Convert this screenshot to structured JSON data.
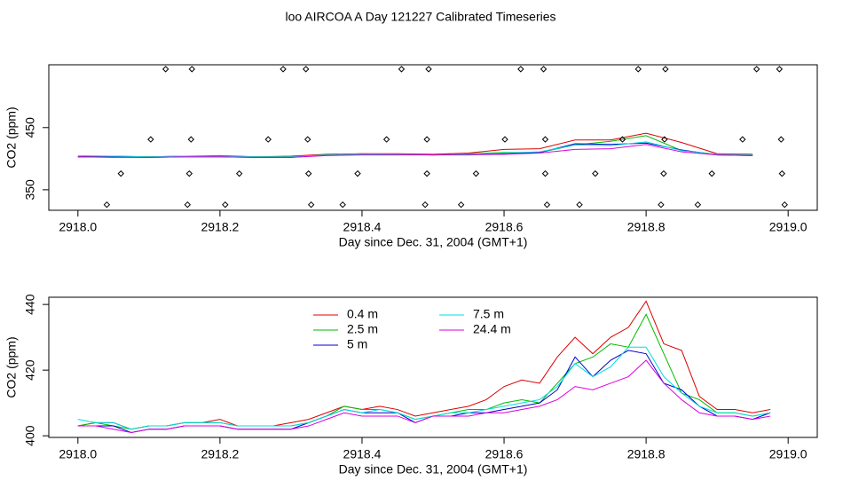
{
  "title": "loo AIRCOA A  Day 121227  Calibrated Timeseries",
  "chart_data": [
    {
      "type": "line",
      "xlabel": "Day since Dec. 31, 2004 (GMT+1)",
      "ylabel": "CO2 (ppm)",
      "xlim": [
        2917.959,
        2919.041
      ],
      "ylim": [
        317,
        551
      ],
      "xticks": [
        {
          "value": 2918,
          "label": "2918.0"
        },
        2918.2,
        2918.4,
        2918.6,
        2918.8,
        {
          "value": 2919,
          "label": "2919.0"
        }
      ],
      "yticks": [
        350,
        450
      ],
      "x": [
        2918.0,
        2918.05,
        2918.1,
        2918.15,
        2918.2,
        2918.25,
        2918.3,
        2918.35,
        2918.4,
        2918.45,
        2918.5,
        2918.55,
        2918.6,
        2918.65,
        2918.7,
        2918.75,
        2918.8,
        2918.85,
        2918.9,
        2918.95
      ],
      "series": [
        {
          "color": "#dd0000",
          "style": "lines",
          "values": [
            403,
            404,
            403,
            404,
            405,
            403,
            404,
            407,
            408,
            408,
            407,
            409,
            415,
            416,
            430,
            430,
            441,
            426,
            408,
            407
          ]
        },
        {
          "color": "#00bb00",
          "style": "lines",
          "values": [
            403,
            403,
            403,
            404,
            404,
            403,
            403,
            406,
            408,
            407,
            406,
            408,
            410,
            410,
            422,
            428,
            437,
            413,
            407,
            406
          ]
        },
        {
          "color": "#0000cc",
          "style": "lines",
          "values": [
            403,
            403,
            402,
            403,
            403,
            402,
            402,
            406,
            407,
            407,
            406,
            407,
            408,
            410,
            424,
            423,
            425,
            414,
            406,
            405
          ]
        },
        {
          "color": "#00dddd",
          "style": "lines",
          "values": [
            405,
            404,
            403,
            404,
            404,
            403,
            403,
            406,
            407,
            407,
            406,
            407,
            409,
            411,
            422,
            421,
            427,
            413,
            407,
            406
          ]
        },
        {
          "color": "#dd00dd",
          "style": "lines",
          "values": [
            403,
            402,
            402,
            403,
            403,
            402,
            402,
            405,
            406,
            406,
            406,
            406,
            407,
            409,
            415,
            416,
            423,
            411,
            406,
            405
          ]
        },
        {
          "color": "#000000",
          "style": "points",
          "x": [
            2918.1235,
            2918.1605,
            2918.2889,
            2918.321,
            2918.4556,
            2918.4938,
            2918.6235,
            2918.6556,
            2918.7889,
            2918.8272,
            2918.9556,
            2918.9877
          ],
          "values": [
            544,
            544,
            544,
            544,
            544,
            544,
            544,
            544,
            544,
            544,
            544,
            544
          ]
        },
        {
          "color": "#000000",
          "style": "points",
          "x": [
            2918.1025,
            2918.1593,
            2918.2679,
            2918.3235,
            2918.4346,
            2918.4914,
            2918.6012,
            2918.658,
            2918.7667,
            2918.8259,
            2918.9358,
            2918.9901
          ],
          "values": [
            431,
            431,
            431,
            431,
            431,
            431,
            431,
            431,
            431,
            431,
            431,
            431
          ]
        },
        {
          "color": "#000000",
          "style": "points",
          "x": [
            2918.0605,
            2918.1568,
            2918.2272,
            2918.3247,
            2918.3938,
            2918.4914,
            2918.5605,
            2918.658,
            2918.7284,
            2918.8247,
            2918.8926,
            2918.9914
          ],
          "values": [
            376,
            376,
            376,
            376,
            376,
            376,
            376,
            376,
            376,
            376,
            376,
            376
          ]
        },
        {
          "color": "#000000",
          "style": "points",
          "x": [
            2918.0407,
            2918.1543,
            2918.2074,
            2918.3284,
            2918.3728,
            2918.4889,
            2918.5395,
            2918.6605,
            2918.7062,
            2918.821,
            2918.8728,
            2918.9951
          ],
          "values": [
            326,
            326,
            326,
            326,
            326,
            326,
            326,
            326,
            326,
            326,
            326,
            326
          ]
        }
      ]
    },
    {
      "type": "line",
      "xlabel": "Day since Dec. 31, 2004 (GMT+1)",
      "ylabel": "CO2 (ppm)",
      "xlim": [
        2917.959,
        2919.041
      ],
      "ylim": [
        399.5,
        442.2
      ],
      "xticks": [
        {
          "value": 2918,
          "label": "2918.0"
        },
        2918.2,
        2918.4,
        2918.6,
        2918.8,
        {
          "value": 2919,
          "label": "2919.0"
        }
      ],
      "yticks": [
        400,
        420,
        440
      ],
      "legend": "top",
      "x": [
        2918.0,
        2918.025,
        2918.05,
        2918.075,
        2918.1,
        2918.125,
        2918.15,
        2918.175,
        2918.2,
        2918.225,
        2918.25,
        2918.275,
        2918.3,
        2918.325,
        2918.35,
        2918.375,
        2918.4,
        2918.425,
        2918.45,
        2918.475,
        2918.5,
        2918.525,
        2918.55,
        2918.575,
        2918.6,
        2918.625,
        2918.65,
        2918.675,
        2918.7,
        2918.725,
        2918.75,
        2918.775,
        2918.8,
        2918.825,
        2918.85,
        2918.875,
        2918.9,
        2918.925,
        2918.95,
        2918.975
      ],
      "series": [
        {
          "name": "0.4 m",
          "color": "#dd0000",
          "style": "lines",
          "values": [
            403,
            404,
            404,
            402,
            403,
            403,
            404,
            404,
            405,
            403,
            403,
            403,
            404,
            405,
            407,
            409,
            408,
            409,
            408,
            406,
            407,
            408,
            409,
            411,
            415,
            417,
            416,
            424,
            430,
            425,
            430,
            433,
            441,
            428,
            426,
            412,
            408,
            408,
            407,
            408
          ]
        },
        {
          "name": "2.5 m",
          "color": "#00bb00",
          "style": "lines",
          "values": [
            403,
            404,
            403,
            402,
            403,
            403,
            404,
            404,
            404,
            403,
            403,
            403,
            403,
            404,
            406,
            409,
            408,
            408,
            407,
            405,
            406,
            407,
            408,
            408,
            410,
            411,
            410,
            416,
            422,
            424,
            428,
            427,
            437,
            425,
            413,
            411,
            407,
            407,
            406,
            407
          ]
        },
        {
          "name": "5 m",
          "color": "#0000cc",
          "style": "lines",
          "values": [
            403,
            403,
            403,
            401,
            402,
            402,
            403,
            403,
            403,
            402,
            402,
            402,
            402,
            404,
            406,
            408,
            407,
            407,
            407,
            404,
            406,
            406,
            407,
            407,
            408,
            409,
            410,
            414,
            424,
            418,
            423,
            426,
            425,
            416,
            414,
            409,
            406,
            406,
            405,
            407
          ]
        },
        {
          "name": "7.5 m",
          "color": "#00dddd",
          "style": "lines",
          "values": [
            405,
            404,
            404,
            402,
            403,
            403,
            404,
            404,
            404,
            403,
            403,
            403,
            403,
            404,
            406,
            408,
            407,
            408,
            407,
            405,
            406,
            407,
            407,
            408,
            409,
            410,
            411,
            415,
            422,
            418,
            421,
            427,
            427,
            418,
            413,
            409,
            407,
            407,
            406,
            407
          ]
        },
        {
          "name": "24.4 m",
          "color": "#dd00dd",
          "style": "lines",
          "values": [
            403,
            403,
            402,
            401,
            402,
            402,
            403,
            403,
            403,
            402,
            402,
            402,
            402,
            403,
            405,
            407,
            406,
            406,
            406,
            404,
            406,
            406,
            406,
            407,
            407,
            408,
            409,
            411,
            415,
            414,
            416,
            418,
            423,
            416,
            411,
            407,
            406,
            406,
            405,
            406
          ]
        }
      ]
    }
  ]
}
